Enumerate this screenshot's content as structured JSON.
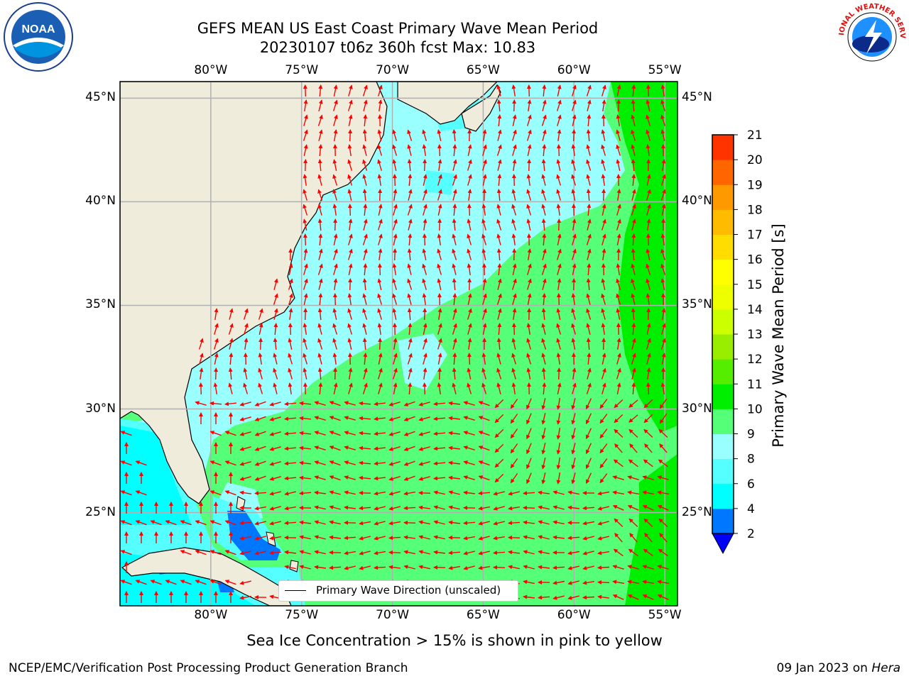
{
  "header": {
    "title_line1": "GEFS MEAN US East Coast Primary Wave Mean Period",
    "title_line2": "20230107 t06z 360h fcst   Max: 10.83"
  },
  "logos": {
    "left": {
      "name": "noaa-logo",
      "text": "NOAA"
    },
    "right": {
      "name": "nws-logo",
      "text": "NATIONAL WEATHER SERVICE"
    }
  },
  "map": {
    "lon_labels": [
      "80°W",
      "75°W",
      "70°W",
      "65°W",
      "60°W",
      "55°W"
    ],
    "lat_labels": [
      "45°N",
      "40°N",
      "35°N",
      "30°N",
      "25°N"
    ],
    "lon_values": [
      -80,
      -75,
      -70,
      -65,
      -60,
      -55
    ],
    "lat_values": [
      45,
      40,
      35,
      30,
      25
    ],
    "extent": {
      "lon_min": -85,
      "lon_max": -54.3,
      "lat_min": 20.5,
      "lat_max": 45.8
    },
    "colors": {
      "land": "#efecdc",
      "arrows": "#ff0000",
      "grid": "#b0b0b0",
      "coast": "#000000"
    }
  },
  "legend": {
    "label": "Primary Wave Direction (unscaled)"
  },
  "colorbar": {
    "title": "Primary Wave Mean Period [s]",
    "ticks": [
      "21",
      "20",
      "19",
      "18",
      "17",
      "16",
      "15",
      "14",
      "13",
      "12",
      "11",
      "10",
      "9",
      "8",
      "6",
      "4",
      "2"
    ],
    "levels": [
      2,
      4,
      6,
      8,
      9,
      10,
      11,
      12,
      13,
      14,
      15,
      16,
      17,
      18,
      19,
      20,
      21
    ],
    "colors": [
      "#0077ff",
      "#00ffff",
      "#55ffff",
      "#99ffff",
      "#55ff77",
      "#00ee00",
      "#55ee00",
      "#99ee00",
      "#ccff00",
      "#eeff00",
      "#ffff00",
      "#ffdd00",
      "#ffbb00",
      "#ff9900",
      "#ff6600",
      "#ff3300"
    ],
    "extend_color": "#0000ff"
  },
  "note": "Sea Ice Concentration > 15% is shown in pink to yellow",
  "footer": {
    "left": "NCEP/EMC/Verification Post Processing Product Generation Branch",
    "right_prefix": "09 Jan 2023 on ",
    "right_italic": "Hera"
  }
}
